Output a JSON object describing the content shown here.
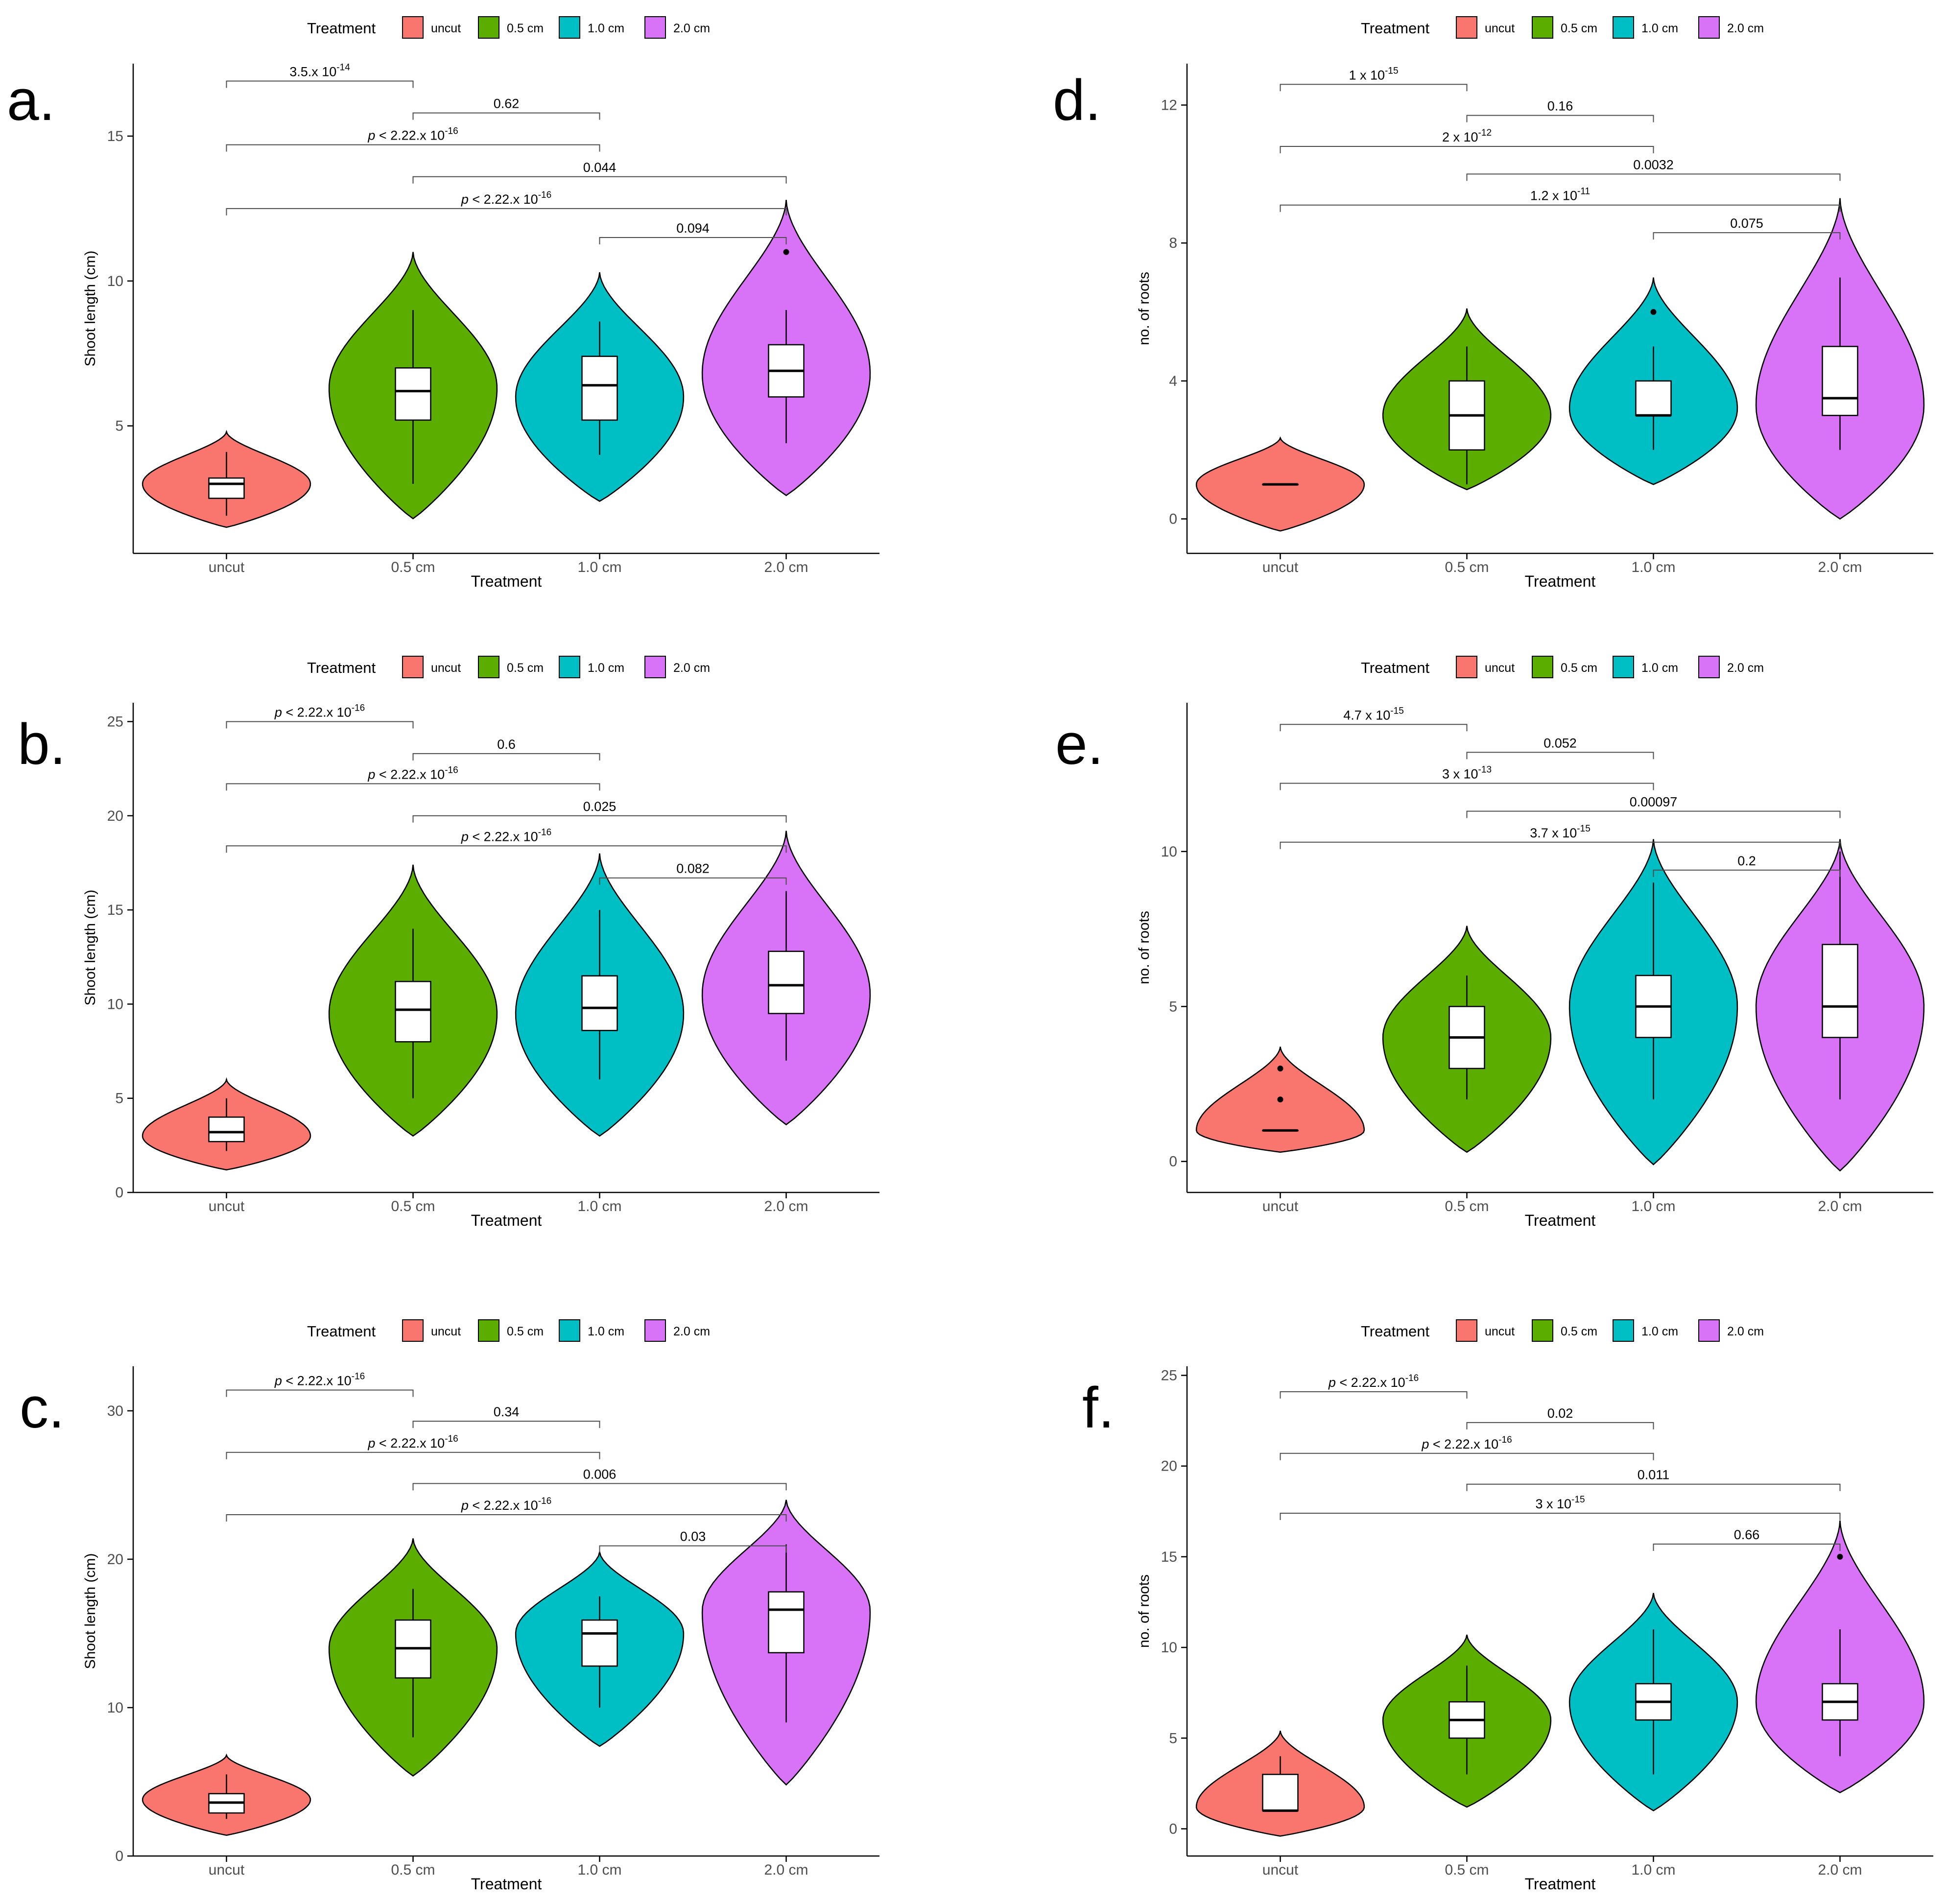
{
  "colors": {
    "uncut": "#F8766D",
    "0.5 cm": "#5BAD00",
    "1.0 cm": "#00BFC4",
    "2.0 cm": "#D873F8",
    "axis": "#000000",
    "bracket": "#4d4d4d",
    "box_fill": "#ffffff"
  },
  "chart_data": [
    {
      "panel": "a.",
      "type": "violin",
      "legend_title": "Treatment",
      "legend_position": "top",
      "categories": [
        "uncut",
        "0.5 cm",
        "1.0 cm",
        "2.0 cm"
      ],
      "xlabel": "Treatment",
      "ylabel": "Shoot length (cm)",
      "ylim": [
        0.6,
        17.5
      ],
      "yticks": [
        5,
        10,
        15
      ],
      "groups": [
        {
          "name": "uncut",
          "violin": [
            1.5,
            4.8
          ],
          "widest": 3.0,
          "whisker": [
            1.9,
            4.1
          ],
          "q1": 2.5,
          "median": 3.0,
          "q3": 3.2,
          "outliers": []
        },
        {
          "name": "0.5 cm",
          "violin": [
            1.8,
            11.0
          ],
          "widest": 6.3,
          "whisker": [
            3.0,
            9.0
          ],
          "q1": 5.2,
          "median": 6.2,
          "q3": 7.0,
          "outliers": []
        },
        {
          "name": "1.0 cm",
          "violin": [
            2.4,
            10.3
          ],
          "widest": 6.0,
          "whisker": [
            4.0,
            8.6
          ],
          "q1": 5.2,
          "median": 6.4,
          "q3": 7.4,
          "outliers": []
        },
        {
          "name": "2.0 cm",
          "violin": [
            2.6,
            12.8
          ],
          "widest": 6.8,
          "whisker": [
            4.4,
            9.0
          ],
          "q1": 6.0,
          "median": 6.9,
          "q3": 7.8,
          "outliers": [
            11.0
          ]
        }
      ],
      "comparisons": [
        {
          "from": "uncut",
          "to": "0.5 cm",
          "y": 16.9,
          "label": "3.5.x 10",
          "sup": "-14",
          "p_prefix": false
        },
        {
          "from": "0.5 cm",
          "to": "1.0 cm",
          "y": 15.8,
          "label": "0.62",
          "sup": "",
          "p_prefix": false
        },
        {
          "from": "uncut",
          "to": "1.0 cm",
          "y": 14.7,
          "label": "< 2.22.x 10",
          "sup": "-16",
          "p_prefix": true
        },
        {
          "from": "0.5 cm",
          "to": "2.0 cm",
          "y": 13.6,
          "label": "0.044",
          "sup": "",
          "p_prefix": false
        },
        {
          "from": "uncut",
          "to": "2.0 cm",
          "y": 12.5,
          "label": "< 2.22.x 10",
          "sup": "-16",
          "p_prefix": true
        },
        {
          "from": "1.0 cm",
          "to": "2.0 cm",
          "y": 11.5,
          "label": "0.094",
          "sup": "",
          "p_prefix": false
        }
      ]
    },
    {
      "panel": "b.",
      "type": "violin",
      "legend_title": "Treatment",
      "legend_position": "top",
      "categories": [
        "uncut",
        "0.5 cm",
        "1.0 cm",
        "2.0 cm"
      ],
      "xlabel": "Treatment",
      "ylabel": "Shoot length (cm)",
      "ylim": [
        0,
        26
      ],
      "yticks": [
        0,
        5,
        10,
        15,
        20,
        25
      ],
      "groups": [
        {
          "name": "uncut",
          "violin": [
            1.2,
            6.0
          ],
          "widest": 3.0,
          "whisker": [
            2.2,
            5.0
          ],
          "q1": 2.7,
          "median": 3.2,
          "q3": 4.0,
          "outliers": []
        },
        {
          "name": "0.5 cm",
          "violin": [
            3.0,
            17.4
          ],
          "widest": 9.5,
          "whisker": [
            5.0,
            14.0
          ],
          "q1": 8.0,
          "median": 9.7,
          "q3": 11.2,
          "outliers": []
        },
        {
          "name": "1.0 cm",
          "violin": [
            3.0,
            18.0
          ],
          "widest": 9.5,
          "whisker": [
            6.0,
            15.0
          ],
          "q1": 8.6,
          "median": 9.8,
          "q3": 11.5,
          "outliers": []
        },
        {
          "name": "2.0 cm",
          "violin": [
            3.6,
            19.2
          ],
          "widest": 10.5,
          "whisker": [
            7.0,
            16.0
          ],
          "q1": 9.5,
          "median": 11.0,
          "q3": 12.8,
          "outliers": []
        }
      ],
      "comparisons": [
        {
          "from": "uncut",
          "to": "0.5 cm",
          "y": 25.0,
          "label": "< 2.22.x 10",
          "sup": "-16",
          "p_prefix": true
        },
        {
          "from": "0.5 cm",
          "to": "1.0 cm",
          "y": 23.3,
          "label": "0.6",
          "sup": "",
          "p_prefix": false
        },
        {
          "from": "uncut",
          "to": "1.0 cm",
          "y": 21.7,
          "label": "< 2.22.x 10",
          "sup": "-16",
          "p_prefix": true
        },
        {
          "from": "0.5 cm",
          "to": "2.0 cm",
          "y": 20.0,
          "label": "0.025",
          "sup": "",
          "p_prefix": false
        },
        {
          "from": "uncut",
          "to": "2.0 cm",
          "y": 18.4,
          "label": "< 2.22.x 10",
          "sup": "-16",
          "p_prefix": true
        },
        {
          "from": "1.0 cm",
          "to": "2.0 cm",
          "y": 16.7,
          "label": "0.082",
          "sup": "",
          "p_prefix": false
        }
      ]
    },
    {
      "panel": "c.",
      "type": "violin",
      "legend_title": "Treatment",
      "legend_position": "top",
      "categories": [
        "uncut",
        "0.5 cm",
        "1.0 cm",
        "2.0 cm"
      ],
      "xlabel": "Treatment",
      "ylabel": "Shoot length (cm)",
      "ylim": [
        0,
        33
      ],
      "yticks": [
        0,
        10,
        20,
        30
      ],
      "groups": [
        {
          "name": "uncut",
          "violin": [
            1.4,
            6.8
          ],
          "widest": 3.8,
          "whisker": [
            2.5,
            5.5
          ],
          "q1": 2.9,
          "median": 3.6,
          "q3": 4.2,
          "outliers": []
        },
        {
          "name": "0.5 cm",
          "violin": [
            5.4,
            21.4
          ],
          "widest": 14.0,
          "whisker": [
            8.0,
            18.0
          ],
          "q1": 12.0,
          "median": 14.0,
          "q3": 15.9,
          "outliers": []
        },
        {
          "name": "1.0 cm",
          "violin": [
            7.4,
            20.5
          ],
          "widest": 15.0,
          "whisker": [
            10.0,
            17.5
          ],
          "q1": 12.8,
          "median": 15.0,
          "q3": 15.9,
          "outliers": []
        },
        {
          "name": "2.0 cm",
          "violin": [
            4.8,
            24.0
          ],
          "widest": 16.5,
          "whisker": [
            9.0,
            21.0
          ],
          "q1": 13.7,
          "median": 16.6,
          "q3": 17.8,
          "outliers": []
        }
      ],
      "comparisons": [
        {
          "from": "uncut",
          "to": "0.5 cm",
          "y": 31.4,
          "label": "< 2.22.x 10",
          "sup": "-16",
          "p_prefix": true
        },
        {
          "from": "0.5 cm",
          "to": "1.0 cm",
          "y": 29.3,
          "label": "0.34",
          "sup": "",
          "p_prefix": false
        },
        {
          "from": "uncut",
          "to": "1.0 cm",
          "y": 27.2,
          "label": "< 2.22.x 10",
          "sup": "-16",
          "p_prefix": true
        },
        {
          "from": "0.5 cm",
          "to": "2.0 cm",
          "y": 25.1,
          "label": "0.006",
          "sup": "",
          "p_prefix": false
        },
        {
          "from": "uncut",
          "to": "2.0 cm",
          "y": 23.0,
          "label": "< 2.22.x 10",
          "sup": "-16",
          "p_prefix": true
        },
        {
          "from": "1.0 cm",
          "to": "2.0 cm",
          "y": 20.9,
          "label": "0.03",
          "sup": "",
          "p_prefix": false
        }
      ]
    },
    {
      "panel": "d.",
      "type": "violin",
      "legend_title": "Treatment",
      "legend_position": "top",
      "categories": [
        "uncut",
        "0.5 cm",
        "1.0 cm",
        "2.0 cm"
      ],
      "xlabel": "Treatment",
      "ylabel": "no. of roots",
      "ylim": [
        -1.0,
        13.2
      ],
      "yticks": [
        0,
        4,
        8,
        12
      ],
      "groups": [
        {
          "name": "uncut",
          "violin": [
            -0.35,
            2.35
          ],
          "widest": 1.0,
          "whisker": [
            1.0,
            1.0
          ],
          "q1": 1.0,
          "median": 1.0,
          "q3": 1.0,
          "outliers": []
        },
        {
          "name": "0.5 cm",
          "violin": [
            0.85,
            6.1
          ],
          "widest": 3.0,
          "whisker": [
            1.0,
            5.0
          ],
          "q1": 2.0,
          "median": 3.0,
          "q3": 4.0,
          "outliers": []
        },
        {
          "name": "1.0 cm",
          "violin": [
            1.0,
            7.0
          ],
          "widest": 3.2,
          "whisker": [
            2.0,
            5.0
          ],
          "q1": 3.0,
          "median": 3.0,
          "q3": 4.0,
          "outliers": [
            6.0
          ]
        },
        {
          "name": "2.0 cm",
          "violin": [
            0.0,
            9.3
          ],
          "widest": 3.3,
          "whisker": [
            2.0,
            7.0
          ],
          "q1": 3.0,
          "median": 3.5,
          "q3": 5.0,
          "outliers": []
        }
      ],
      "comparisons": [
        {
          "from": "uncut",
          "to": "0.5 cm",
          "y": 12.6,
          "label": "1 x 10",
          "sup": "-15",
          "p_prefix": false
        },
        {
          "from": "0.5 cm",
          "to": "1.0 cm",
          "y": 11.7,
          "label": "0.16",
          "sup": "",
          "p_prefix": false
        },
        {
          "from": "uncut",
          "to": "1.0 cm",
          "y": 10.8,
          "label": "2 x 10",
          "sup": "-12",
          "p_prefix": false
        },
        {
          "from": "0.5 cm",
          "to": "2.0 cm",
          "y": 10.0,
          "label": "0.0032",
          "sup": "",
          "p_prefix": false
        },
        {
          "from": "uncut",
          "to": "2.0 cm",
          "y": 9.1,
          "label": "1.2 x 10",
          "sup": "-11",
          "p_prefix": false
        },
        {
          "from": "1.0 cm",
          "to": "2.0 cm",
          "y": 8.3,
          "label": "0.075",
          "sup": "",
          "p_prefix": false
        }
      ]
    },
    {
      "panel": "e.",
      "type": "violin",
      "legend_title": "Treatment",
      "legend_position": "top",
      "categories": [
        "uncut",
        "0.5 cm",
        "1.0 cm",
        "2.0 cm"
      ],
      "xlabel": "Treatment",
      "ylabel": "no. of roots",
      "ylim": [
        -1.0,
        14.8
      ],
      "yticks": [
        0,
        5,
        10
      ],
      "groups": [
        {
          "name": "uncut",
          "violin": [
            0.3,
            3.7
          ],
          "widest": 1.0,
          "whisker": [
            1.0,
            1.0
          ],
          "q1": 1.0,
          "median": 1.0,
          "q3": 1.0,
          "outliers": [
            2.0,
            3.0
          ]
        },
        {
          "name": "0.5 cm",
          "violin": [
            0.3,
            7.6
          ],
          "widest": 4.0,
          "whisker": [
            2.0,
            6.0
          ],
          "q1": 3.0,
          "median": 4.0,
          "q3": 5.0,
          "outliers": []
        },
        {
          "name": "1.0 cm",
          "violin": [
            -0.1,
            10.4
          ],
          "widest": 5.0,
          "whisker": [
            2.0,
            9.0
          ],
          "q1": 4.0,
          "median": 5.0,
          "q3": 6.0,
          "outliers": []
        },
        {
          "name": "2.0 cm",
          "violin": [
            -0.3,
            10.4
          ],
          "widest": 5.0,
          "whisker": [
            2.0,
            10.0
          ],
          "q1": 4.0,
          "median": 5.0,
          "q3": 7.0,
          "outliers": []
        }
      ],
      "comparisons": [
        {
          "from": "uncut",
          "to": "0.5 cm",
          "y": 14.1,
          "label": "4.7 x 10",
          "sup": "-15",
          "p_prefix": false
        },
        {
          "from": "0.5 cm",
          "to": "1.0 cm",
          "y": 13.2,
          "label": "0.052",
          "sup": "",
          "p_prefix": false
        },
        {
          "from": "uncut",
          "to": "1.0 cm",
          "y": 12.2,
          "label": "3 x 10",
          "sup": "-13",
          "p_prefix": false
        },
        {
          "from": "0.5 cm",
          "to": "2.0 cm",
          "y": 11.3,
          "label": "0.00097",
          "sup": "",
          "p_prefix": false
        },
        {
          "from": "uncut",
          "to": "2.0 cm",
          "y": 10.3,
          "label": "3.7 x 10",
          "sup": "-15",
          "p_prefix": false
        },
        {
          "from": "1.0 cm",
          "to": "2.0 cm",
          "y": 9.4,
          "label": "0.2",
          "sup": "",
          "p_prefix": false
        }
      ]
    },
    {
      "panel": "f.",
      "type": "violin",
      "legend_title": "Treatment",
      "legend_position": "top",
      "categories": [
        "uncut",
        "0.5 cm",
        "1.0 cm",
        "2.0 cm"
      ],
      "xlabel": "Treatment",
      "ylabel": "no. of roots",
      "ylim": [
        -1.5,
        25.5
      ],
      "yticks": [
        0,
        5,
        10,
        15,
        20,
        25
      ],
      "groups": [
        {
          "name": "uncut",
          "violin": [
            -0.4,
            5.4
          ],
          "widest": 1.2,
          "whisker": [
            1.0,
            4.0
          ],
          "q1": 1.0,
          "median": 1.0,
          "q3": 3.0,
          "outliers": []
        },
        {
          "name": "0.5 cm",
          "violin": [
            1.2,
            10.7
          ],
          "widest": 6.0,
          "whisker": [
            3.0,
            9.0
          ],
          "q1": 5.0,
          "median": 6.0,
          "q3": 7.0,
          "outliers": []
        },
        {
          "name": "1.0 cm",
          "violin": [
            1.0,
            13.0
          ],
          "widest": 7.0,
          "whisker": [
            3.0,
            11.0
          ],
          "q1": 6.0,
          "median": 7.0,
          "q3": 8.0,
          "outliers": []
        },
        {
          "name": "2.0 cm",
          "violin": [
            2.0,
            17.0
          ],
          "widest": 7.0,
          "whisker": [
            4.0,
            11.0
          ],
          "q1": 6.0,
          "median": 7.0,
          "q3": 8.0,
          "outliers": [
            15.0
          ]
        }
      ],
      "comparisons": [
        {
          "from": "uncut",
          "to": "0.5 cm",
          "y": 24.1,
          "label": "< 2.22.x 10",
          "sup": "-16",
          "p_prefix": true
        },
        {
          "from": "0.5 cm",
          "to": "1.0 cm",
          "y": 22.4,
          "label": "0.02",
          "sup": "",
          "p_prefix": false
        },
        {
          "from": "uncut",
          "to": "1.0 cm",
          "y": 20.7,
          "label": "< 2.22.x 10",
          "sup": "-16",
          "p_prefix": true
        },
        {
          "from": "0.5 cm",
          "to": "2.0 cm",
          "y": 19.0,
          "label": "0.011",
          "sup": "",
          "p_prefix": false
        },
        {
          "from": "uncut",
          "to": "2.0 cm",
          "y": 17.4,
          "label": "3 x 10",
          "sup": "-15",
          "p_prefix": false
        },
        {
          "from": "1.0 cm",
          "to": "2.0 cm",
          "y": 15.7,
          "label": "0.66",
          "sup": "",
          "p_prefix": false
        }
      ]
    }
  ]
}
